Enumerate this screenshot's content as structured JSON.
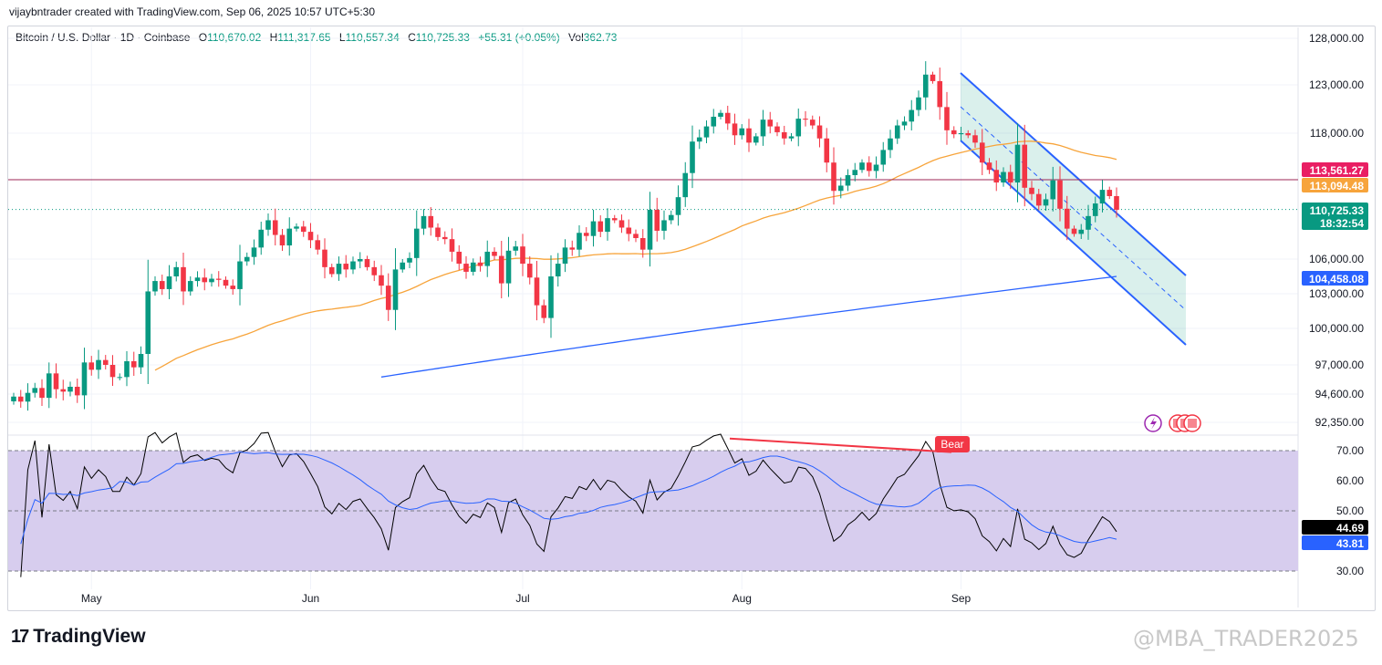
{
  "header": {
    "credit": "vijaybntrader created with TradingView.com, Sep 06, 2025 10:57 UTC+5:30"
  },
  "legend": {
    "symbol": "Bitcoin / U.S. Dollar · 1D · Coinbase",
    "open_label": "O",
    "open": "110,670.02",
    "high_label": "H",
    "high": "111,317.65",
    "low_label": "L",
    "low": "110,557.34",
    "close_label": "C",
    "close": "110,725.33",
    "change": "+55.31 (+0.05%)",
    "vol_label": "Vol",
    "vol": "362.73"
  },
  "colors": {
    "up": "#089981",
    "down": "#f23645",
    "ma50": "#f7a43b",
    "ma200": "#2962ff",
    "channel": "#2962ff",
    "rsi": "#000000",
    "rsi_ma": "#2962ff",
    "rsi_band": "#d7cdee",
    "bear": "#f23645"
  },
  "price_labels": {
    "resistance": "113,561.27",
    "ma50": "113,094.48",
    "last": "110,725.33",
    "countdown": "18:32:54",
    "ma200": "104,458.08"
  },
  "rsi_labels": {
    "rsi": "44.69",
    "ma": "43.81",
    "bear": "Bear"
  },
  "footer": {
    "brand": "TradingView",
    "watermark": "@MBA_TRADER2025"
  },
  "chart_data": {
    "type": "candlestick",
    "title": "Bitcoin / U.S. Dollar · 1D · Coinbase",
    "price_axis_ticks": [
      128000,
      123000,
      118000,
      106000,
      103000,
      100000,
      97000,
      94600,
      92350
    ],
    "price_axis_labels": [
      "128,000.00",
      "123,000.00",
      "118,000.00",
      "106,000.00",
      "103,000.00",
      "100,000.00",
      "97,000.00",
      "94,600.00",
      "92,350.00"
    ],
    "x_labels": [
      {
        "label": "May",
        "index": 11
      },
      {
        "label": "Jun",
        "index": 42
      },
      {
        "label": "Jul",
        "index": 72
      },
      {
        "label": "Aug",
        "index": 103
      },
      {
        "label": "Sep",
        "index": 134
      }
    ],
    "closes": [
      94400,
      94000,
      94700,
      95100,
      94300,
      96300,
      95000,
      94800,
      95200,
      94500,
      97200,
      96600,
      97400,
      97000,
      96000,
      96000,
      97300,
      96800,
      97900,
      103200,
      104100,
      103400,
      104500,
      105300,
      103200,
      104100,
      104400,
      104000,
      104300,
      104200,
      103700,
      103400,
      105800,
      106200,
      107100,
      108800,
      109700,
      108300,
      107300,
      108900,
      109100,
      108600,
      107800,
      106900,
      105300,
      104700,
      105600,
      105100,
      105800,
      106000,
      105300,
      104600,
      103700,
      101600,
      105100,
      105700,
      106100,
      108900,
      110100,
      109000,
      108100,
      107900,
      106700,
      105600,
      104900,
      105700,
      105400,
      106700,
      106300,
      103900,
      106800,
      107200,
      105600,
      104400,
      102000,
      100900,
      104500,
      105600,
      107100,
      106900,
      108500,
      108200,
      109600,
      108600,
      109900,
      109700,
      109000,
      108400,
      108000,
      106900,
      110700,
      108700,
      109700,
      110200,
      111900,
      114200,
      117200,
      117600,
      118700,
      119700,
      120100,
      119000,
      117800,
      118500,
      117100,
      117700,
      119400,
      118700,
      118100,
      117500,
      117700,
      119500,
      119400,
      118800,
      117500,
      115200,
      112500,
      113000,
      114000,
      114500,
      115200,
      114400,
      115000,
      116400,
      117500,
      118800,
      119200,
      120400,
      121700,
      124100,
      123400,
      120700,
      118300,
      117900,
      118000,
      117800,
      117100,
      115200,
      114500,
      113300,
      114300,
      113300,
      116900,
      112800,
      112200,
      111100,
      111700,
      113500,
      110800,
      108900,
      108400,
      108800,
      110100,
      111300,
      112600,
      112000,
      110700
    ]
  }
}
